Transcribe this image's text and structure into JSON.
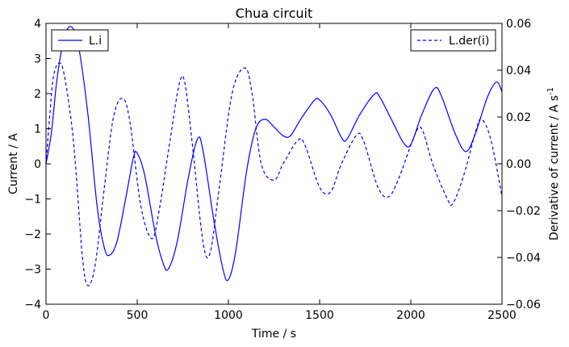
{
  "chart_data": {
    "type": "line",
    "title": "Chua circuit",
    "xlabel": "Time  / s",
    "ylabel_left": "Current / A",
    "ylabel_right": "Derivative of current / A s",
    "ylabel_right_exponent": "-1",
    "xlim": [
      0,
      2500
    ],
    "ylim_left": [
      -4,
      4
    ],
    "ylim_right": [
      -0.06,
      0.06
    ],
    "x_ticks": [
      0,
      500,
      1000,
      1500,
      2000,
      2500
    ],
    "y_left_ticks": [
      4,
      3,
      2,
      1,
      0,
      -1,
      -2,
      -3,
      -4
    ],
    "y_right_ticks": [
      0.06,
      0.04,
      0.02,
      0.0,
      -0.02,
      -0.04,
      -0.06
    ],
    "x_tick_labels": [
      "0",
      "500",
      "1000",
      "1500",
      "2000",
      "2500"
    ],
    "y_left_tick_labels": [
      "4",
      "3",
      "2",
      "1",
      "0",
      "−1",
      "−2",
      "−3",
      "−4"
    ],
    "y_right_tick_labels": [
      "0.06",
      "0.04",
      "0.02",
      "0.00",
      "−0.02",
      "−0.04",
      "−0.06"
    ],
    "grid": false,
    "series": [
      {
        "name": "L.i",
        "axis": "left",
        "style": "solid",
        "color": "#0000ff",
        "legend_position": "top-left",
        "points": [
          [
            0,
            0
          ],
          [
            30,
            0.9
          ],
          [
            60,
            2.4
          ],
          [
            100,
            3.6
          ],
          [
            140,
            3.9
          ],
          [
            180,
            3.3
          ],
          [
            230,
            1.4
          ],
          [
            280,
            -1.2
          ],
          [
            320,
            -2.4
          ],
          [
            350,
            -2.6
          ],
          [
            390,
            -2.2
          ],
          [
            440,
            -0.9
          ],
          [
            480,
            0.2
          ],
          [
            500,
            0.3
          ],
          [
            540,
            -0.3
          ],
          [
            600,
            -2.0
          ],
          [
            640,
            -2.8
          ],
          [
            670,
            -3.0
          ],
          [
            720,
            -2.2
          ],
          [
            780,
            -0.4
          ],
          [
            830,
            0.7
          ],
          [
            860,
            0.4
          ],
          [
            920,
            -1.6
          ],
          [
            970,
            -3.0
          ],
          [
            1000,
            -3.3
          ],
          [
            1040,
            -2.5
          ],
          [
            1100,
            -0.2
          ],
          [
            1150,
            1.0
          ],
          [
            1200,
            1.27
          ],
          [
            1250,
            1.05
          ],
          [
            1300,
            0.8
          ],
          [
            1340,
            0.8
          ],
          [
            1400,
            1.3
          ],
          [
            1470,
            1.8
          ],
          [
            1500,
            1.82
          ],
          [
            1560,
            1.4
          ],
          [
            1620,
            0.75
          ],
          [
            1650,
            0.7
          ],
          [
            1720,
            1.4
          ],
          [
            1800,
            1.98
          ],
          [
            1830,
            1.9
          ],
          [
            1900,
            1.2
          ],
          [
            1960,
            0.6
          ],
          [
            2000,
            0.55
          ],
          [
            2060,
            1.4
          ],
          [
            2130,
            2.15
          ],
          [
            2170,
            1.9
          ],
          [
            2240,
            0.9
          ],
          [
            2300,
            0.35
          ],
          [
            2350,
            0.8
          ],
          [
            2420,
            1.9
          ],
          [
            2470,
            2.33
          ],
          [
            2500,
            2.05
          ]
        ]
      },
      {
        "name": "L.der(i)",
        "axis": "right",
        "style": "dashed",
        "color": "#0000ff",
        "legend_position": "top-right",
        "points": [
          [
            0,
            0.0
          ],
          [
            20,
            0.02
          ],
          [
            40,
            0.037
          ],
          [
            70,
            0.043
          ],
          [
            100,
            0.038
          ],
          [
            150,
            0.01
          ],
          [
            200,
            -0.04
          ],
          [
            230,
            -0.052
          ],
          [
            270,
            -0.043
          ],
          [
            320,
            -0.01
          ],
          [
            370,
            0.02
          ],
          [
            420,
            0.028
          ],
          [
            460,
            0.018
          ],
          [
            520,
            -0.018
          ],
          [
            580,
            -0.032
          ],
          [
            620,
            -0.02
          ],
          [
            680,
            0.01
          ],
          [
            730,
            0.034
          ],
          [
            760,
            0.035
          ],
          [
            800,
            0.01
          ],
          [
            860,
            -0.033
          ],
          [
            900,
            -0.038
          ],
          [
            950,
            -0.01
          ],
          [
            1020,
            0.03
          ],
          [
            1090,
            0.041
          ],
          [
            1130,
            0.03
          ],
          [
            1180,
            0.0
          ],
          [
            1250,
            -0.007
          ],
          [
            1300,
            0.0
          ],
          [
            1380,
            0.01
          ],
          [
            1420,
            0.008
          ],
          [
            1500,
            -0.01
          ],
          [
            1560,
            -0.012
          ],
          [
            1620,
            0.0
          ],
          [
            1700,
            0.012
          ],
          [
            1740,
            0.01
          ],
          [
            1820,
            -0.01
          ],
          [
            1880,
            -0.014
          ],
          [
            1940,
            -0.005
          ],
          [
            2020,
            0.012
          ],
          [
            2060,
            0.015
          ],
          [
            2120,
            0.0
          ],
          [
            2200,
            -0.015
          ],
          [
            2230,
            -0.017
          ],
          [
            2290,
            -0.005
          ],
          [
            2360,
            0.015
          ],
          [
            2390,
            0.019
          ],
          [
            2440,
            0.01
          ],
          [
            2500,
            -0.014
          ]
        ]
      }
    ]
  }
}
